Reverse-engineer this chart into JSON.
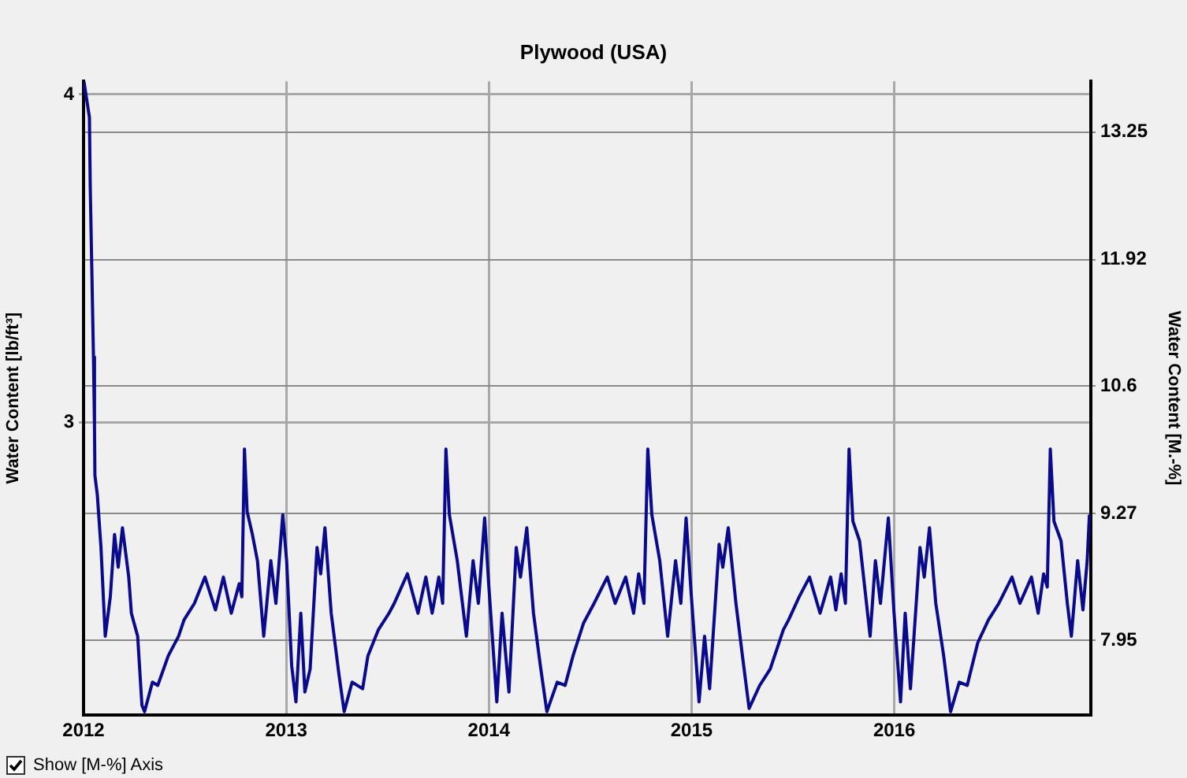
{
  "chart_data": {
    "type": "line",
    "title": "Plywood (USA)",
    "ylabel": "Water Content [lb/ft³]",
    "y2label": "Water Content [M.-%]",
    "annotations": [
      "Show [M-%] Axis"
    ],
    "xlim": [
      2012,
      2016.97
    ],
    "xticks": [
      2012,
      2013,
      2014,
      2015,
      2016
    ],
    "ylim": [
      2.11,
      4.04
    ],
    "yticks": [
      3,
      4
    ],
    "y2lim": [
      7.17,
      13.78
    ],
    "y2ticks": [
      7.95,
      9.27,
      10.6,
      11.92,
      13.25
    ],
    "grid": true,
    "legend": false,
    "marker": "none",
    "line_style": "solid",
    "series": [
      {
        "color": "#0a0a8c",
        "x": [
          2012.002,
          2012.029,
          2012.033,
          2012.041,
          2012.049,
          2012.054,
          2012.056,
          2012.068,
          2012.086,
          2012.107,
          2012.132,
          2012.153,
          2012.171,
          2012.192,
          2012.223,
          2012.236,
          2012.267,
          2012.288,
          2012.301,
          2012.34,
          2012.366,
          2012.418,
          2012.469,
          2012.496,
          2012.547,
          2012.599,
          2012.651,
          2012.69,
          2012.729,
          2012.768,
          2012.781,
          2012.794,
          2012.807,
          2012.833,
          2012.858,
          2012.889,
          2012.924,
          2012.949,
          2012.983,
          2013.002,
          2013.027,
          2013.048,
          2013.072,
          2013.092,
          2013.118,
          2013.152,
          2013.17,
          2013.191,
          2013.222,
          2013.261,
          2013.286,
          2013.325,
          2013.377,
          2013.403,
          2013.455,
          2013.507,
          2013.533,
          2013.598,
          2013.65,
          2013.689,
          2013.72,
          2013.753,
          2013.772,
          2013.788,
          2013.805,
          2013.844,
          2013.889,
          2013.922,
          2013.948,
          2013.979,
          2014.0,
          2014.039,
          2014.065,
          2014.099,
          2014.135,
          2014.156,
          2014.187,
          2014.22,
          2014.254,
          2014.286,
          2014.337,
          2014.376,
          2014.415,
          2014.467,
          2014.519,
          2014.584,
          2014.623,
          2014.675,
          2014.714,
          2014.739,
          2014.765,
          2014.784,
          2014.804,
          2014.843,
          2014.882,
          2014.921,
          2014.947,
          2014.973,
          2014.998,
          2015.037,
          2015.064,
          2015.089,
          2015.136,
          2015.154,
          2015.181,
          2015.219,
          2015.251,
          2015.284,
          2015.336,
          2015.388,
          2015.453,
          2015.479,
          2015.531,
          2015.582,
          2015.634,
          2015.686,
          2015.712,
          2015.738,
          2015.759,
          2015.777,
          2015.796,
          2015.829,
          2015.881,
          2015.907,
          2015.932,
          2015.971,
          2015.998,
          2016.031,
          2016.054,
          2016.08,
          2016.127,
          2016.148,
          2016.174,
          2016.205,
          2016.244,
          2016.278,
          2016.321,
          2016.36,
          2016.412,
          2016.465,
          2016.516,
          2016.581,
          2016.62,
          2016.677,
          2016.71,
          2016.737,
          2016.755,
          2016.77,
          2016.788,
          2016.823,
          2016.854,
          2016.874,
          2016.905,
          2016.931,
          2016.952,
          2016.963
        ],
        "values": [
          4.04,
          3.93,
          3.72,
          3.46,
          3.2,
          2.99,
          2.84,
          2.78,
          2.62,
          2.35,
          2.47,
          2.66,
          2.56,
          2.68,
          2.53,
          2.42,
          2.35,
          2.14,
          2.12,
          2.21,
          2.2,
          2.29,
          2.35,
          2.4,
          2.45,
          2.53,
          2.43,
          2.53,
          2.42,
          2.51,
          2.47,
          2.92,
          2.73,
          2.66,
          2.58,
          2.35,
          2.58,
          2.45,
          2.72,
          2.58,
          2.26,
          2.15,
          2.42,
          2.18,
          2.25,
          2.62,
          2.54,
          2.68,
          2.42,
          2.23,
          2.12,
          2.21,
          2.19,
          2.29,
          2.37,
          2.42,
          2.45,
          2.54,
          2.42,
          2.53,
          2.42,
          2.53,
          2.45,
          2.92,
          2.72,
          2.58,
          2.35,
          2.58,
          2.45,
          2.71,
          2.5,
          2.15,
          2.42,
          2.18,
          2.62,
          2.53,
          2.68,
          2.42,
          2.26,
          2.12,
          2.21,
          2.2,
          2.29,
          2.39,
          2.45,
          2.53,
          2.45,
          2.53,
          2.42,
          2.54,
          2.45,
          2.92,
          2.72,
          2.58,
          2.35,
          2.58,
          2.45,
          2.71,
          2.48,
          2.15,
          2.35,
          2.19,
          2.63,
          2.56,
          2.68,
          2.45,
          2.29,
          2.13,
          2.2,
          2.25,
          2.37,
          2.4,
          2.47,
          2.53,
          2.42,
          2.53,
          2.43,
          2.54,
          2.45,
          2.92,
          2.7,
          2.64,
          2.35,
          2.58,
          2.45,
          2.71,
          2.43,
          2.15,
          2.42,
          2.19,
          2.62,
          2.53,
          2.68,
          2.45,
          2.29,
          2.12,
          2.21,
          2.2,
          2.33,
          2.4,
          2.45,
          2.53,
          2.45,
          2.53,
          2.42,
          2.54,
          2.5,
          2.92,
          2.7,
          2.64,
          2.45,
          2.35,
          2.58,
          2.43,
          2.58,
          2.72
        ]
      }
    ]
  }
}
